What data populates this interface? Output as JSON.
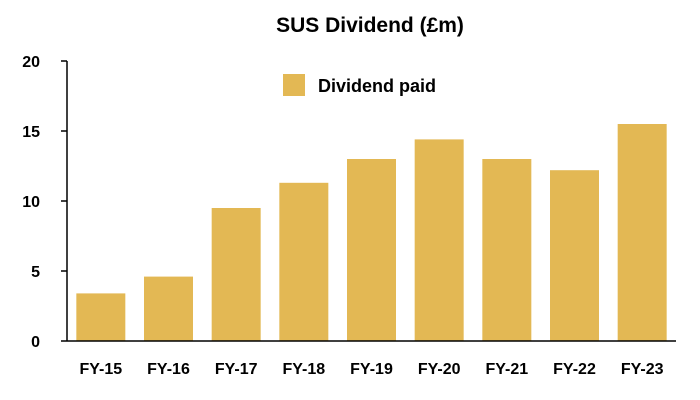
{
  "chart_data": {
    "type": "bar",
    "title": "SUS Dividend (£m)",
    "xlabel": "",
    "ylabel": "",
    "categories": [
      "FY-15",
      "FY-16",
      "FY-17",
      "FY-18",
      "FY-19",
      "FY-20",
      "FY-21",
      "FY-22",
      "FY-23"
    ],
    "series": [
      {
        "name": "Dividend paid",
        "color": "#E3B854",
        "values": [
          3.4,
          4.6,
          9.5,
          11.3,
          13.0,
          14.4,
          13.0,
          12.2,
          15.5
        ]
      }
    ],
    "ylim": [
      0,
      20
    ],
    "yticks": [
      0,
      5,
      10,
      15,
      20
    ],
    "grid": false,
    "legend_position": "top-center"
  }
}
